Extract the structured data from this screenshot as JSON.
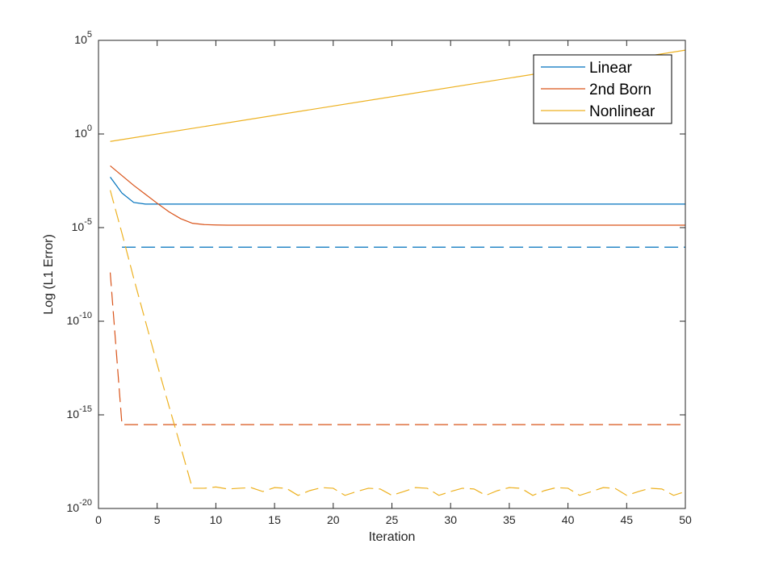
{
  "chart_data": {
    "type": "line",
    "xlabel": "Iteration",
    "ylabel": "Log (L1 Error)",
    "x_scale": "linear",
    "y_scale": "log",
    "xlim": [
      0,
      50
    ],
    "ylim": [
      1e-20,
      100000
    ],
    "x_ticks": [
      0,
      5,
      10,
      15,
      20,
      25,
      30,
      35,
      40,
      45,
      50
    ],
    "y_ticks": [
      {
        "value": 1e-20,
        "base": "10",
        "exp": "-20"
      },
      {
        "value": 1e-15,
        "base": "10",
        "exp": "-15"
      },
      {
        "value": 1e-10,
        "base": "10",
        "exp": "-10"
      },
      {
        "value": 1e-05,
        "base": "10",
        "exp": "-5"
      },
      {
        "value": 1,
        "base": "10",
        "exp": "0"
      },
      {
        "value": 100000,
        "base": "10",
        "exp": "5"
      }
    ],
    "grid": false,
    "legend_position": "top-right",
    "colors": {
      "linear": "#0072BD",
      "born": "#D95319",
      "nonlinear": "#EDB120",
      "axis": "#262626"
    },
    "legend": [
      {
        "label": "Linear",
        "color": "#0072BD"
      },
      {
        "label": "2nd Born",
        "color": "#D95319"
      },
      {
        "label": "Nonlinear",
        "color": "#EDB120"
      }
    ],
    "series": [
      {
        "legend_label": "Linear",
        "color": "#0072BD",
        "style": "solid",
        "x": [
          1,
          2,
          3,
          4,
          5,
          6,
          7,
          8,
          9,
          10,
          15,
          20,
          25,
          30,
          35,
          40,
          45,
          50
        ],
        "y": [
          0.005,
          0.0007,
          0.00022,
          0.00018,
          0.00018,
          0.00018,
          0.00018,
          0.00018,
          0.00018,
          0.00018,
          0.00018,
          0.00018,
          0.00018,
          0.00018,
          0.00018,
          0.00018,
          0.00018,
          0.00018
        ]
      },
      {
        "legend_label": "2nd Born",
        "color": "#D95319",
        "style": "solid",
        "x": [
          1,
          2,
          3,
          4,
          5,
          6,
          7,
          8,
          9,
          10,
          11,
          12,
          15,
          20,
          25,
          30,
          35,
          40,
          45,
          50
        ],
        "y": [
          0.02,
          0.006,
          0.0018,
          0.0006,
          0.0002,
          7e-05,
          3e-05,
          1.7e-05,
          1.45e-05,
          1.38e-05,
          1.35e-05,
          1.35e-05,
          1.35e-05,
          1.35e-05,
          1.35e-05,
          1.35e-05,
          1.35e-05,
          1.35e-05,
          1.35e-05,
          1.35e-05
        ]
      },
      {
        "legend_label": "Nonlinear",
        "color": "#EDB120",
        "style": "solid",
        "x": [
          1,
          50
        ],
        "y": [
          0.4,
          30000
        ]
      },
      {
        "color": "#0072BD",
        "style": "dashed",
        "x": [
          2,
          50
        ],
        "y": [
          9e-07,
          9e-07
        ]
      },
      {
        "color": "#D95319",
        "style": "dashed",
        "x": [
          1,
          2,
          3,
          50
        ],
        "y": [
          4e-08,
          3e-16,
          3e-16,
          3e-16
        ]
      },
      {
        "color": "#EDB120",
        "style": "dashed",
        "x": [
          1,
          2,
          3,
          4,
          5,
          6,
          7,
          8,
          9,
          10,
          11,
          12,
          13,
          14,
          15,
          16,
          17,
          18,
          19,
          20,
          21,
          22,
          23,
          24,
          25,
          26,
          27,
          28,
          29,
          30,
          31,
          32,
          33,
          34,
          35,
          36,
          37,
          38,
          39,
          40,
          41,
          42,
          43,
          44,
          45,
          46,
          47,
          48,
          49,
          50
        ],
        "y": [
          0.001,
          5e-06,
          2e-08,
          1e-10,
          5e-13,
          3e-15,
          2e-17,
          1.2e-19,
          1.2e-19,
          1.4e-19,
          1.1e-19,
          1.2e-19,
          1.3e-19,
          8e-20,
          1.3e-19,
          1.2e-19,
          5e-20,
          9e-20,
          1.3e-19,
          1.2e-19,
          5e-20,
          8e-20,
          1.2e-19,
          1.1e-19,
          5e-20,
          8e-20,
          1.3e-19,
          1.2e-19,
          5e-20,
          8e-20,
          1.2e-19,
          1.1e-19,
          5e-20,
          9e-20,
          1.3e-19,
          1.2e-19,
          5e-20,
          9e-20,
          1.3e-19,
          1.2e-19,
          5e-20,
          8e-20,
          1.3e-19,
          1.2e-19,
          5e-20,
          8e-20,
          1.2e-19,
          1.1e-19,
          5e-20,
          8e-20
        ]
      }
    ]
  }
}
